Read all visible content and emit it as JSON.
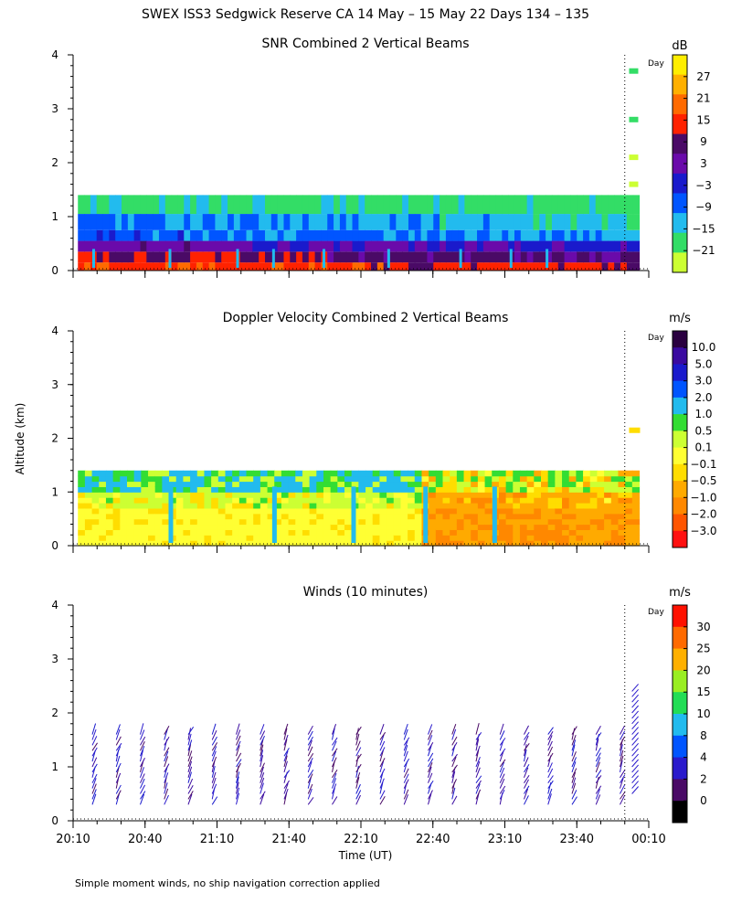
{
  "page_title": "SWEX ISS3 Sedgwick Reserve CA  14 May – 15 May 22 Days 134 – 135",
  "y_label": "Altitude (km)",
  "x_label": "Time (UT)",
  "footnote": "Simple moment winds, no ship navigation correction applied",
  "day_marker_label": "Day",
  "colors": {
    "snr_scale": [
      "#ccff33",
      "#33dd66",
      "#22bbee",
      "#0055ff",
      "#1a1acc",
      "#6a0aaa",
      "#4a0a66",
      "#ff2200",
      "#ff6a00",
      "#ffb000",
      "#ffee00"
    ],
    "doppler_scale": [
      "#ff1111",
      "#ff5500",
      "#ff8800",
      "#ffaa00",
      "#ffdd00",
      "#ffff33",
      "#ccff33",
      "#33dd33",
      "#22bbee",
      "#0055ff",
      "#1a1acc",
      "#3a0aa0",
      "#2a0040"
    ],
    "wind_scale": [
      "#000000",
      "#4a0a66",
      "#2a1acc",
      "#0055ff",
      "#22bbee",
      "#22dd55",
      "#99ee22",
      "#ffb000",
      "#ff6a00",
      "#ff1100"
    ]
  },
  "chart_data": [
    {
      "type": "heatmap",
      "title": "SNR Combined 2 Vertical Beams",
      "units": "dB",
      "xlabel": "Time (UT)",
      "ylabel": "Altitude (km)",
      "x_ticks": [
        "20:10",
        "20:40",
        "21:10",
        "21:40",
        "22:10",
        "22:40",
        "23:10",
        "23:40",
        "00:10"
      ],
      "x_range_hours": [
        20.1667,
        24.1667
      ],
      "y_ticks": [
        0,
        1,
        2,
        3,
        4
      ],
      "ylim": [
        0,
        4
      ],
      "day_boundary_hour": 24.0,
      "colorbar_ticks": [
        "27",
        "21",
        "15",
        "9",
        "3",
        "−3",
        "−9",
        "−15",
        "−21"
      ],
      "colorbar_range": [
        -24,
        33
      ],
      "data_top_km": 1.4,
      "layers": [
        {
          "altitude_km": [
            0.0,
            0.15
          ],
          "snr_db": 24
        },
        {
          "altitude_km": [
            0.15,
            0.35
          ],
          "snr_db": 18
        },
        {
          "altitude_km": [
            0.35,
            0.55
          ],
          "snr_db": 10
        },
        {
          "altitude_km": [
            0.55,
            0.75
          ],
          "snr_db": -2
        },
        {
          "altitude_km": [
            0.75,
            1.05
          ],
          "snr_db": -5
        },
        {
          "altitude_km": [
            1.05,
            1.4
          ],
          "snr_db": -14
        }
      ]
    },
    {
      "type": "heatmap",
      "title": "Doppler Velocity Combined 2 Vertical Beams",
      "units": "m/s",
      "xlabel": "Time (UT)",
      "ylabel": "Altitude (km)",
      "x_ticks": [
        "20:10",
        "20:40",
        "21:10",
        "21:40",
        "22:10",
        "22:40",
        "23:10",
        "23:40",
        "00:10"
      ],
      "y_ticks": [
        0,
        1,
        2,
        3,
        4
      ],
      "ylim": [
        0,
        4
      ],
      "colorbar_ticks": [
        "10.0",
        "5.0",
        "3.0",
        "2.0",
        "1.0",
        "0.5",
        "0.1",
        "−0.1",
        "−0.5",
        "−1.0",
        "−2.0",
        "−3.0"
      ],
      "data_top_km": 1.4,
      "layers": [
        {
          "altitude_km": [
            0.0,
            0.6
          ],
          "velocity_ms": -0.1
        },
        {
          "altitude_km": [
            0.6,
            1.0
          ],
          "velocity_ms": 0.1
        },
        {
          "altitude_km": [
            1.0,
            1.4
          ],
          "velocity_ms": 1.0
        }
      ]
    },
    {
      "type": "scatter",
      "subtype": "wind_barbs",
      "title": "Winds (10 minutes)",
      "units": "m/s",
      "xlabel": "Time (UT)",
      "ylabel": "Altitude (km)",
      "x_ticks": [
        "20:10",
        "20:40",
        "21:10",
        "21:40",
        "22:10",
        "22:40",
        "23:10",
        "23:40",
        "00:10"
      ],
      "y_ticks": [
        0,
        1,
        2,
        3,
        4
      ],
      "ylim": [
        0,
        4
      ],
      "colorbar_ticks": [
        "30",
        "25",
        "20",
        "15",
        "10",
        "8",
        "4",
        "2",
        "0"
      ],
      "profile_interval_min": 10,
      "profile_top_km": 1.65,
      "typical_speed_ms": 3
    }
  ]
}
